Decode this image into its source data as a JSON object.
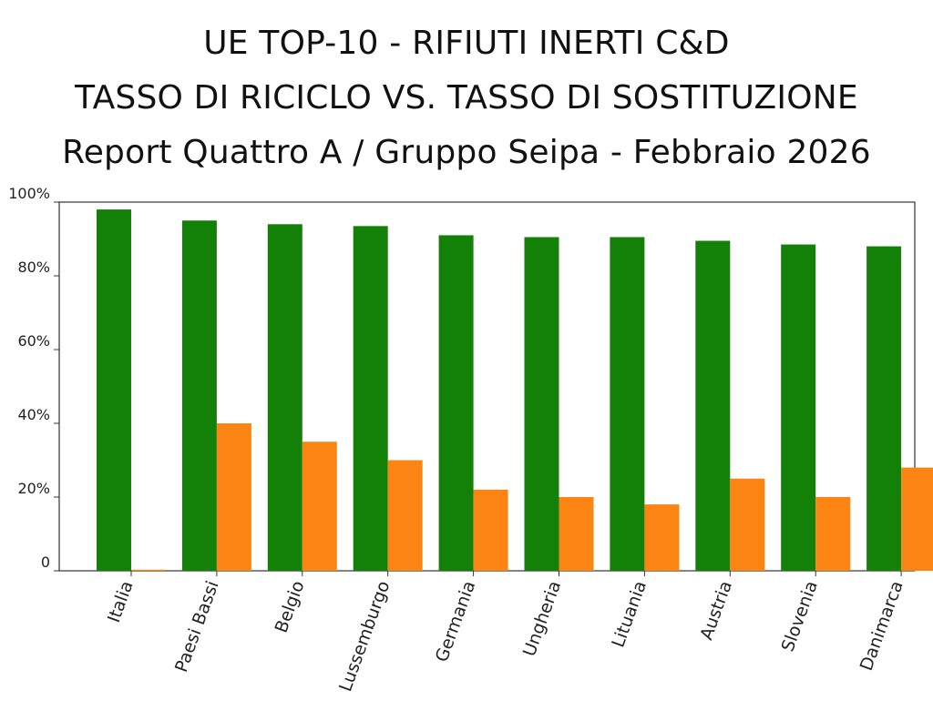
{
  "header": {
    "title_line1": "UE TOP-10 - RIFIUTI INERTI C&D",
    "title_line2": "TASSO DI RICICLO VS. TASSO DI SOSTITUZIONE",
    "subtitle": "Report Quattro A / Gruppo Seipa - Febbraio 2026"
  },
  "colors": {
    "series_recycling": "#138008",
    "series_substitution": "#fc8413",
    "axis": "#333333",
    "background": "#ffffff"
  },
  "chart_data": {
    "type": "bar",
    "title": "UE TOP-10 - RIFIUTI INERTI C&D TASSO DI RICICLO VS. TASSO DI SOSTITUZIONE",
    "subtitle": "Report Quattro A / Gruppo Seipa - Febbraio 2026",
    "categories": [
      "Italia",
      "Paesi Bassi",
      "Belgio",
      "Lussemburgo",
      "Germania",
      "Ungheria",
      "Lituania",
      "Austria",
      "Slovenia",
      "Danimarca"
    ],
    "series": [
      {
        "values": [
          98,
          95,
          94,
          93.5,
          91,
          90.5,
          90.5,
          89.5,
          88.5,
          88
        ]
      },
      {
        "values": [
          0.3,
          40,
          35,
          30,
          22,
          20,
          18,
          25,
          20,
          28
        ]
      }
    ],
    "ylim": [
      0,
      100
    ],
    "yticks": [
      "0",
      "20%",
      "40%",
      "60%",
      "80%",
      "100%"
    ],
    "ytick_values": [
      0,
      20,
      40,
      60,
      80,
      100
    ],
    "xlabel": "",
    "ylabel": "",
    "grid": false,
    "legend": "none"
  }
}
